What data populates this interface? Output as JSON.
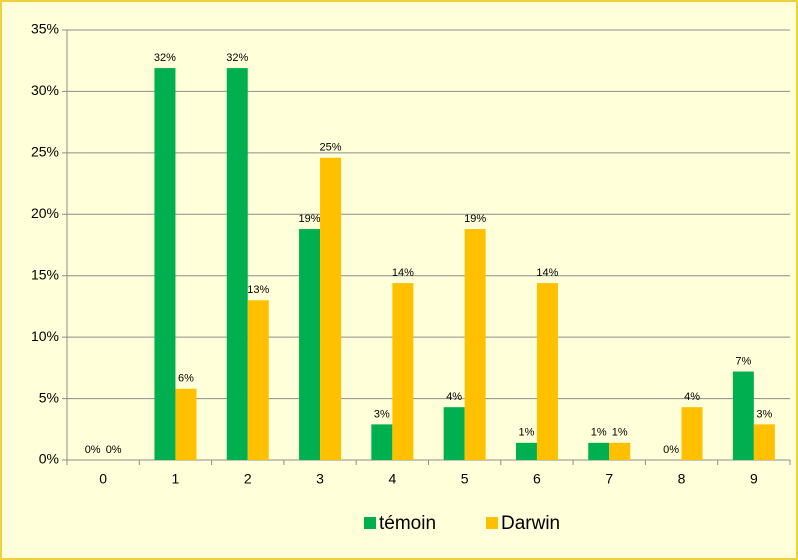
{
  "chart_data": {
    "type": "bar",
    "categories": [
      "0",
      "1",
      "2",
      "3",
      "4",
      "5",
      "6",
      "7",
      "8",
      "9"
    ],
    "series": [
      {
        "name": "témoin",
        "color": "#00b050",
        "values": [
          0,
          31.9,
          31.9,
          18.8,
          2.9,
          4.3,
          1.4,
          1.4,
          0,
          7.2
        ],
        "value_labels": [
          "0%",
          "32%",
          "32%",
          "19%",
          "3%",
          "4%",
          "1%",
          "1%",
          "0%",
          "7%"
        ]
      },
      {
        "name": "Darwin",
        "color": "#ffc000",
        "values": [
          0,
          5.8,
          13.0,
          24.6,
          14.4,
          18.8,
          14.4,
          1.4,
          4.3,
          2.9
        ],
        "value_labels": [
          "0%",
          "6%",
          "13%",
          "25%",
          "14%",
          "19%",
          "14%",
          "1%",
          "4%",
          "3%"
        ]
      }
    ],
    "ylim": [
      0,
      35
    ],
    "yticks": [
      {
        "value": 0,
        "label": "0%"
      },
      {
        "value": 5,
        "label": "5%"
      },
      {
        "value": 10,
        "label": "10%"
      },
      {
        "value": 15,
        "label": "15%"
      },
      {
        "value": 20,
        "label": "20%"
      },
      {
        "value": 25,
        "label": "25%"
      },
      {
        "value": 30,
        "label": "30%"
      },
      {
        "value": 35,
        "label": "35%"
      }
    ],
    "grid": true,
    "legend": "bottom"
  }
}
